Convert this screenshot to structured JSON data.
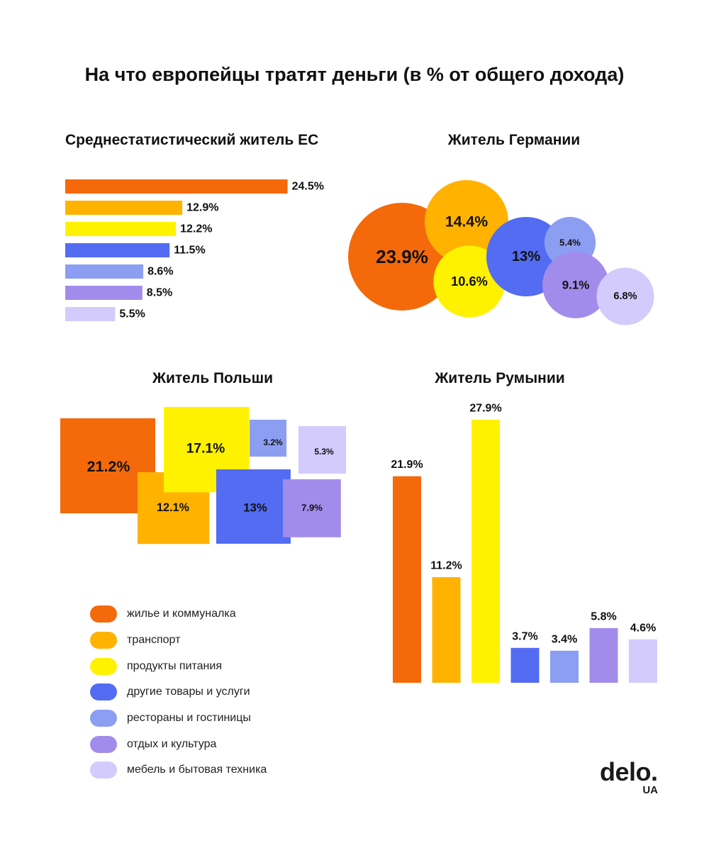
{
  "title": "На что европейцы тратят деньги (в % от общего дохода)",
  "colors": {
    "housing": "#F46A0A",
    "transport": "#FFB300",
    "food": "#FFF200",
    "other": "#536CF2",
    "restaurants": "#8C9EF1",
    "leisure": "#A28CEB",
    "furniture": "#D3CBFB"
  },
  "legend": [
    {
      "key": "housing",
      "label": "жилье и коммуналка"
    },
    {
      "key": "transport",
      "label": "транспорт"
    },
    {
      "key": "food",
      "label": "продукты питания"
    },
    {
      "key": "other",
      "label": "другие товары и услуги"
    },
    {
      "key": "restaurants",
      "label": "рестораны и гостиницы"
    },
    {
      "key": "leisure",
      "label": "отдых и культура"
    },
    {
      "key": "furniture",
      "label": "мебель и бытовая техника"
    }
  ],
  "chart_data": [
    {
      "id": "eu",
      "type": "bar",
      "orientation": "horizontal",
      "title": "Среднестатистический житель ЕС",
      "categories": [
        "housing",
        "transport",
        "food",
        "other",
        "restaurants",
        "leisure",
        "furniture"
      ],
      "values": [
        24.5,
        12.9,
        12.2,
        11.5,
        8.6,
        8.5,
        5.5
      ],
      "labels": [
        "24.5%",
        "12.9%",
        "12.2%",
        "11.5%",
        "8.6%",
        "8.5%",
        "5.5%"
      ]
    },
    {
      "id": "de",
      "type": "bubble",
      "title": "Житель Германии",
      "categories": [
        "housing",
        "transport",
        "food",
        "other",
        "restaurants",
        "leisure",
        "furniture"
      ],
      "values": [
        23.9,
        14.4,
        10.6,
        13,
        5.4,
        9.1,
        6.8
      ],
      "labels": [
        "23.9%",
        "14.4%",
        "10.6%",
        "13%",
        "5.4%",
        "9.1%",
        "6.8%"
      ]
    },
    {
      "id": "pl",
      "type": "squares",
      "title": "Житель Польши",
      "categories": [
        "housing",
        "transport",
        "food",
        "other",
        "restaurants",
        "leisure",
        "furniture"
      ],
      "values": [
        21.2,
        12.1,
        17.1,
        13,
        3.2,
        7.9,
        5.3
      ],
      "labels": [
        "21.2%",
        "12.1%",
        "17.1%",
        "13%",
        "3.2%",
        "7.9%",
        "5.3%"
      ]
    },
    {
      "id": "ro",
      "type": "bar",
      "orientation": "vertical",
      "title": "Житель Румынии",
      "categories": [
        "housing",
        "transport",
        "food",
        "other",
        "restaurants",
        "leisure",
        "furniture"
      ],
      "values": [
        21.9,
        11.2,
        27.9,
        3.7,
        3.4,
        5.8,
        4.6
      ],
      "labels": [
        "21.9%",
        "11.2%",
        "27.9%",
        "3.7%",
        "3.4%",
        "5.8%",
        "4.6%"
      ]
    }
  ],
  "logo": {
    "main": "delo.",
    "sub": "UA"
  }
}
